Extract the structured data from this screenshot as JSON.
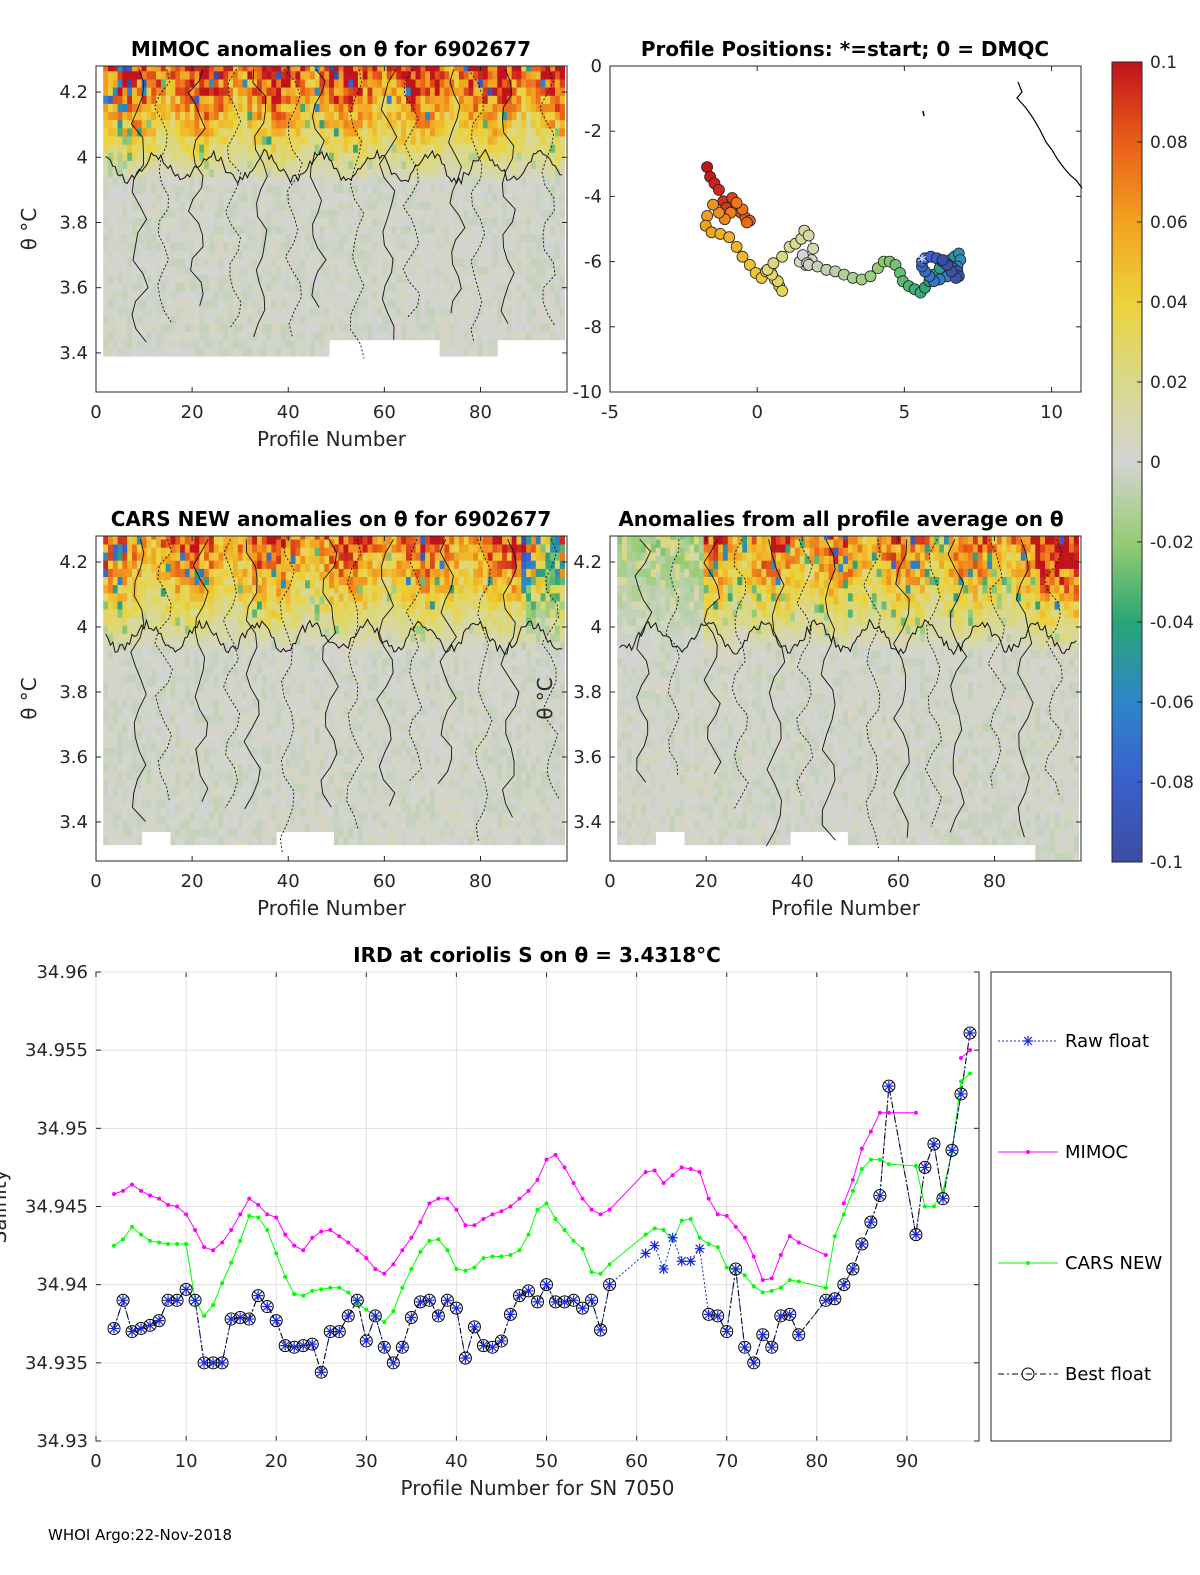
{
  "figure": {
    "footer": "WHOI Argo:22-Nov-2018"
  },
  "chart_data": [
    {
      "id": "mimoc",
      "type": "heatmap",
      "title": "MIMOC anomalies on θ  for 6902677",
      "xlabel": "Profile Number",
      "ylabel": "θ °C",
      "xlim": [
        0,
        98
      ],
      "ylim": [
        3.28,
        4.28
      ],
      "xticks": [
        "0",
        "20",
        "40",
        "60",
        "80"
      ],
      "yticks": [
        "3.4",
        "3.6",
        "3.8",
        "4",
        "4.2"
      ],
      "clim": [
        -0.1,
        0.1
      ]
    },
    {
      "id": "positions",
      "type": "scatter",
      "title": "Profile Positions: *=start; 0 = DMQC",
      "xlim": [
        -5,
        11
      ],
      "ylim": [
        -10,
        0
      ],
      "xticks": [
        "-5",
        "0",
        "5",
        "10"
      ],
      "yticks": [
        "-10",
        "-8",
        "-6",
        "-4",
        "-2",
        "0"
      ],
      "x": [
        -1.7,
        -1.6,
        -1.45,
        -1.3,
        -1.15,
        -1.05,
        -0.85,
        -0.7,
        -0.55,
        -0.4,
        -0.25,
        -0.35,
        -0.5,
        -0.7,
        -0.9,
        -1.1,
        -1.3,
        -1.5,
        -1.7,
        -1.75,
        -1.55,
        -1.25,
        -0.95,
        -0.7,
        -0.5,
        -0.25,
        -0.05,
        0.15,
        0.3,
        0.45,
        0.6,
        0.75,
        0.85,
        0.7,
        0.5,
        0.35,
        0.55,
        0.85,
        1.1,
        1.3,
        1.5,
        1.6,
        1.75,
        1.9,
        1.85,
        1.65,
        1.45,
        1.55,
        1.7,
        1.75,
        2.05,
        2.35,
        2.65,
        2.95,
        3.25,
        3.55,
        3.85,
        4.1,
        4.3,
        4.5,
        4.7,
        4.85,
        4.95,
        5.15,
        5.35,
        5.55,
        5.7,
        5.85,
        6.0,
        6.2,
        6.4,
        6.55,
        6.7,
        6.85,
        6.9,
        6.8,
        6.65,
        6.45,
        6.2,
        6.0,
        5.85,
        5.7,
        5.6,
        5.6,
        5.7,
        5.9,
        6.1,
        6.3,
        6.5,
        6.65,
        6.8,
        6.85,
        6.75,
        6.6,
        6.45,
        6.3
      ],
      "y": [
        -3.1,
        -3.4,
        -3.6,
        -3.8,
        -4.15,
        -4.35,
        -4.05,
        -4.3,
        -4.5,
        -4.65,
        -4.75,
        -4.8,
        -4.4,
        -4.2,
        -4.5,
        -4.7,
        -4.5,
        -4.25,
        -4.6,
        -4.9,
        -5.1,
        -5.15,
        -5.25,
        -5.55,
        -5.85,
        -6.1,
        -6.35,
        -6.5,
        -6.3,
        -6.25,
        -6.55,
        -6.75,
        -6.9,
        -6.6,
        -6.4,
        -6.25,
        -6.05,
        -5.85,
        -5.55,
        -5.45,
        -5.3,
        -5.05,
        -5.2,
        -5.6,
        -5.95,
        -6.1,
        -6.0,
        -5.8,
        -6.05,
        -6.1,
        -6.15,
        -6.25,
        -6.3,
        -6.4,
        -6.5,
        -6.55,
        -6.45,
        -6.2,
        -6.0,
        -6.0,
        -6.1,
        -6.35,
        -6.6,
        -6.75,
        -6.85,
        -6.95,
        -6.8,
        -6.6,
        -6.4,
        -6.2,
        -6.05,
        -5.95,
        -5.85,
        -5.75,
        -5.95,
        -6.15,
        -6.35,
        -6.45,
        -6.55,
        -6.6,
        -6.45,
        -6.3,
        -6.15,
        -6.0,
        -5.9,
        -5.85,
        -5.9,
        -6.0,
        -6.1,
        -6.2,
        -6.3,
        -6.45,
        -6.5,
        -6.3,
        -6.1,
        -5.95
      ],
      "start_marker": "*",
      "colorbar": {
        "ticks": [
          "0.1",
          "0.08",
          "0.06",
          "0.04",
          "0.02",
          "0",
          "-0.02",
          "-0.04",
          "-0.06",
          "-0.08",
          "-0.1"
        ]
      }
    },
    {
      "id": "cars",
      "type": "heatmap",
      "title": "CARS NEW anomalies on θ for 6902677",
      "xlabel": "Profile Number",
      "ylabel": "θ °C",
      "xlim": [
        0,
        98
      ],
      "ylim": [
        3.28,
        4.28
      ],
      "xticks": [
        "0",
        "20",
        "40",
        "60",
        "80"
      ],
      "yticks": [
        "3.4",
        "3.6",
        "3.8",
        "4",
        "4.2"
      ],
      "clim": [
        -0.1,
        0.1
      ]
    },
    {
      "id": "allavg",
      "type": "heatmap",
      "title": "Anomalies from all profile average on θ",
      "xlabel": "Profile Number",
      "ylabel": "θ °C",
      "xlim": [
        0,
        98
      ],
      "ylim": [
        3.28,
        4.28
      ],
      "xticks": [
        "0",
        "20",
        "40",
        "60",
        "80"
      ],
      "yticks": [
        "3.4",
        "3.6",
        "3.8",
        "4",
        "4.2"
      ],
      "clim": [
        -0.1,
        0.1
      ]
    },
    {
      "id": "ird",
      "type": "line",
      "title": "IRD at coriolis S on θ = 3.4318°C",
      "xlabel": "Profile Number for SN 7050",
      "ylabel": "Salinity",
      "xlim": [
        0,
        98
      ],
      "ylim": [
        34.93,
        34.96
      ],
      "xticks": [
        "0",
        "10",
        "20",
        "30",
        "40",
        "50",
        "60",
        "70",
        "80",
        "90"
      ],
      "yticks": [
        "34.93",
        "34.935",
        "34.94",
        "34.945",
        "34.95",
        "34.955",
        "34.96"
      ],
      "x": [
        2,
        3,
        4,
        5,
        6,
        7,
        8,
        9,
        10,
        11,
        12,
        13,
        14,
        15,
        16,
        17,
        18,
        19,
        20,
        21,
        22,
        23,
        24,
        25,
        26,
        27,
        28,
        29,
        30,
        31,
        32,
        33,
        34,
        35,
        36,
        37,
        38,
        39,
        40,
        41,
        42,
        43,
        44,
        45,
        46,
        47,
        48,
        49,
        50,
        51,
        52,
        53,
        54,
        55,
        56,
        57,
        61,
        62,
        63,
        64,
        65,
        66,
        67,
        68,
        69,
        70,
        71,
        72,
        73,
        74,
        75,
        76,
        77,
        78,
        81,
        82,
        83,
        84,
        85,
        86,
        87,
        88,
        91,
        92,
        93,
        94,
        95,
        96,
        97
      ],
      "series": [
        {
          "name": "Raw float",
          "values": [
            34.9372,
            34.939,
            34.937,
            34.9372,
            34.9374,
            34.9377,
            34.939,
            34.939,
            34.9397,
            34.939,
            34.935,
            34.935,
            34.935,
            34.9378,
            34.9379,
            34.9378,
            34.9393,
            34.9386,
            34.9377,
            34.9361,
            34.936,
            34.9361,
            34.9362,
            34.9344,
            34.937,
            34.937,
            34.938,
            34.939,
            34.9364,
            34.938,
            34.936,
            34.935,
            34.936,
            34.9379,
            34.9389,
            34.939,
            34.938,
            34.939,
            34.9385,
            34.9353,
            34.9373,
            34.9361,
            34.936,
            34.9364,
            34.9381,
            34.9393,
            34.9396,
            34.9389,
            34.94,
            34.9389,
            34.9389,
            34.939,
            34.9385,
            34.939,
            34.9371,
            34.94,
            34.942,
            34.9425,
            34.941,
            34.943,
            34.9415,
            34.9415,
            34.9423,
            34.9381,
            34.938,
            34.937,
            34.941,
            34.936,
            34.935,
            34.9368,
            34.936,
            34.938,
            34.9381,
            34.9368,
            34.939,
            34.9391,
            34.94,
            34.941,
            34.9426,
            34.944,
            34.9457,
            34.9527,
            34.9432,
            34.9475,
            34.949,
            34.9455,
            34.9486,
            34.9522,
            34.9561
          ]
        },
        {
          "name": "MIMOC",
          "values": [
            34.9458,
            34.946,
            34.9464,
            34.946,
            34.9457,
            34.9455,
            34.9451,
            34.945,
            34.9445,
            34.9435,
            34.9424,
            34.9422,
            34.9427,
            34.9435,
            34.9445,
            34.9455,
            34.9451,
            34.9445,
            34.9443,
            34.9432,
            34.9425,
            34.9422,
            34.943,
            34.9434,
            34.9435,
            34.9431,
            34.9427,
            34.9422,
            34.9417,
            34.941,
            34.9407,
            34.9413,
            34.9422,
            34.943,
            34.944,
            34.9452,
            34.9455,
            34.9455,
            34.9448,
            34.9438,
            34.9438,
            34.9442,
            34.9445,
            34.9447,
            34.945,
            34.9455,
            34.946,
            34.9467,
            34.948,
            34.9483,
            34.9475,
            34.9465,
            34.9455,
            34.9448,
            34.9445,
            34.9448,
            34.9472,
            34.9473,
            34.9465,
            34.947,
            34.9475,
            34.9474,
            34.9472,
            34.9455,
            34.9445,
            34.9444,
            34.9437,
            34.943,
            34.9418,
            34.9403,
            34.9404,
            34.9419,
            34.9431,
            34.9427,
            34.9419,
            null,
            34.9452,
            34.9467,
            34.9487,
            34.9498,
            34.951,
            34.951,
            34.951,
            null,
            null,
            null,
            null,
            34.9545,
            34.955
          ]
        },
        {
          "name": "CARS NEW",
          "values": [
            34.9425,
            34.9429,
            34.9437,
            34.9432,
            34.9428,
            34.9427,
            34.9426,
            34.9426,
            34.9426,
            34.939,
            34.938,
            34.9387,
            34.9401,
            34.9414,
            34.9428,
            34.9444,
            34.9443,
            34.9435,
            34.942,
            34.9405,
            34.9394,
            34.9393,
            34.9396,
            34.9397,
            34.9398,
            34.9398,
            34.9395,
            34.9388,
            34.9384,
            34.938,
            34.9376,
            34.9383,
            34.9398,
            34.941,
            34.9421,
            34.9428,
            34.9429,
            34.9422,
            34.941,
            34.9409,
            34.9411,
            34.9417,
            34.9418,
            34.9418,
            34.9419,
            34.9422,
            34.9432,
            34.9448,
            34.9452,
            34.9442,
            34.9435,
            34.9428,
            34.9423,
            34.9408,
            34.9407,
            34.9413,
            34.9432,
            34.9436,
            34.9435,
            34.9428,
            34.9441,
            34.9442,
            34.943,
            34.9426,
            34.9424,
            34.9411,
            34.941,
            34.9406,
            34.9399,
            34.9395,
            34.9396,
            34.9398,
            34.9403,
            34.9402,
            34.9398,
            34.9431,
            34.9445,
            34.946,
            34.9474,
            34.948,
            34.948,
            34.9477,
            34.9476,
            34.945,
            34.945,
            34.946,
            34.9485,
            34.953,
            34.9535
          ]
        },
        {
          "name": "Best float",
          "values": [
            34.9372,
            34.939,
            34.937,
            34.9372,
            34.9374,
            34.9377,
            34.939,
            34.939,
            34.9397,
            34.939,
            34.935,
            34.935,
            34.935,
            34.9378,
            34.9379,
            34.9378,
            34.9393,
            34.9386,
            34.9377,
            34.9361,
            34.936,
            34.9361,
            34.9362,
            34.9344,
            34.937,
            34.937,
            34.938,
            34.939,
            34.9364,
            34.938,
            34.936,
            34.935,
            34.936,
            34.9379,
            34.9389,
            34.939,
            34.938,
            34.939,
            34.9385,
            34.9353,
            34.9373,
            34.9361,
            34.936,
            34.9364,
            34.9381,
            34.9393,
            34.9396,
            34.9389,
            34.94,
            34.9389,
            34.9389,
            34.939,
            34.9385,
            34.939,
            34.9371,
            34.94,
            null,
            null,
            null,
            null,
            null,
            null,
            null,
            34.9381,
            34.938,
            34.937,
            34.941,
            34.936,
            34.935,
            34.9368,
            34.936,
            34.938,
            34.9381,
            34.9368,
            34.939,
            34.9391,
            34.94,
            34.941,
            34.9426,
            34.944,
            34.9457,
            34.9527,
            34.9432,
            34.9475,
            34.949,
            34.9455,
            34.9486,
            34.9522,
            34.9561
          ]
        }
      ],
      "colors": {
        "Raw float": "#1a2bd6",
        "MIMOC": "#ff00ff",
        "CARS NEW": "#00ff00",
        "Best float": "#000000"
      }
    }
  ]
}
